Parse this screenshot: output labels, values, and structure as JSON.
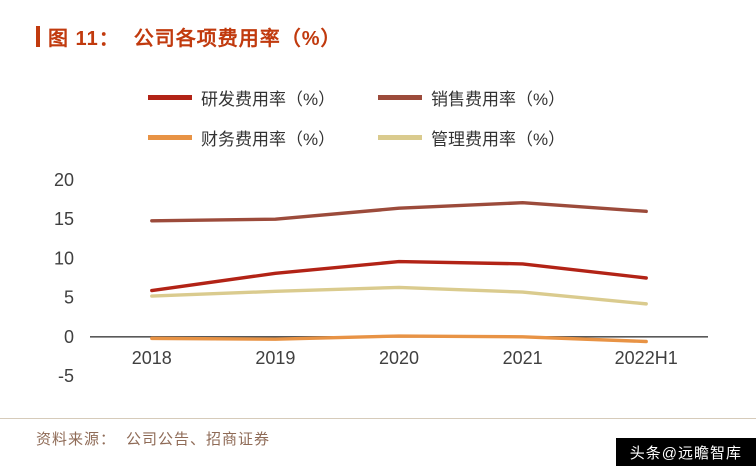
{
  "title": {
    "figure_label": "图 11：",
    "text": "公司各项费用率（%）"
  },
  "colors": {
    "accent": "#C13A0E",
    "axis_text": "#404040",
    "axis_line": "#595959",
    "legend_text": "#333333",
    "source_text": "#8F6B57",
    "divider": "#D6CBBA",
    "watermark_bg": "#000000",
    "watermark_text": "#FFFFFF"
  },
  "chart_data": {
    "type": "line",
    "title": "公司各项费用率（%）",
    "x": [
      "2018",
      "2019",
      "2020",
      "2021",
      "2022H1"
    ],
    "series": [
      {
        "name": "研发费用率（%）",
        "color": "#B22316",
        "values": [
          5.9,
          8.1,
          9.6,
          9.3,
          7.5
        ]
      },
      {
        "name": "销售费用率（%）",
        "color": "#9C4B3B",
        "values": [
          14.8,
          15.0,
          16.4,
          17.1,
          16.0
        ]
      },
      {
        "name": "财务费用率（%）",
        "color": "#E89345",
        "values": [
          -0.2,
          -0.3,
          0.1,
          0.0,
          -0.6
        ]
      },
      {
        "name": "管理费用率（%）",
        "color": "#DACB8E",
        "values": [
          5.2,
          5.8,
          6.3,
          5.7,
          4.2
        ]
      }
    ],
    "ylim": [
      -5,
      20
    ],
    "yticks": [
      -5,
      0,
      5,
      10,
      15,
      20
    ],
    "grid": false,
    "legend_position": "top"
  },
  "source": {
    "label": "资料来源：",
    "text": "公司公告、招商证券"
  },
  "watermark": "头条@远瞻智库"
}
